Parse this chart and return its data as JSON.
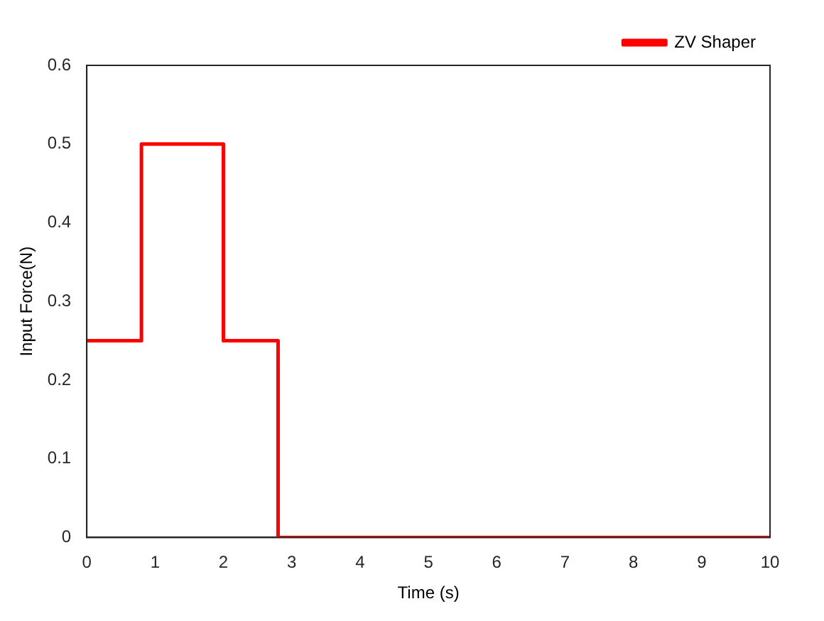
{
  "chart_data": {
    "type": "step",
    "xlabel": "Time (s)",
    "ylabel": "Input Force(N)",
    "x": [
      0,
      0.8,
      2,
      2.8,
      10
    ],
    "series": [
      {
        "name": "ZV Shaper",
        "color": "#ff0000",
        "values": [
          0.25,
          0.5,
          0.25,
          0,
          0
        ]
      }
    ],
    "xlim": [
      0,
      10
    ],
    "xticks": [
      0,
      1,
      2,
      3,
      4,
      5,
      6,
      7,
      8,
      9,
      10
    ],
    "ylim": [
      0,
      0.6
    ],
    "yticks": [
      0,
      0.1,
      0.2,
      0.3,
      0.4,
      0.5,
      0.6
    ],
    "legend": "top right",
    "marker": "none",
    "line_style": "solid"
  }
}
